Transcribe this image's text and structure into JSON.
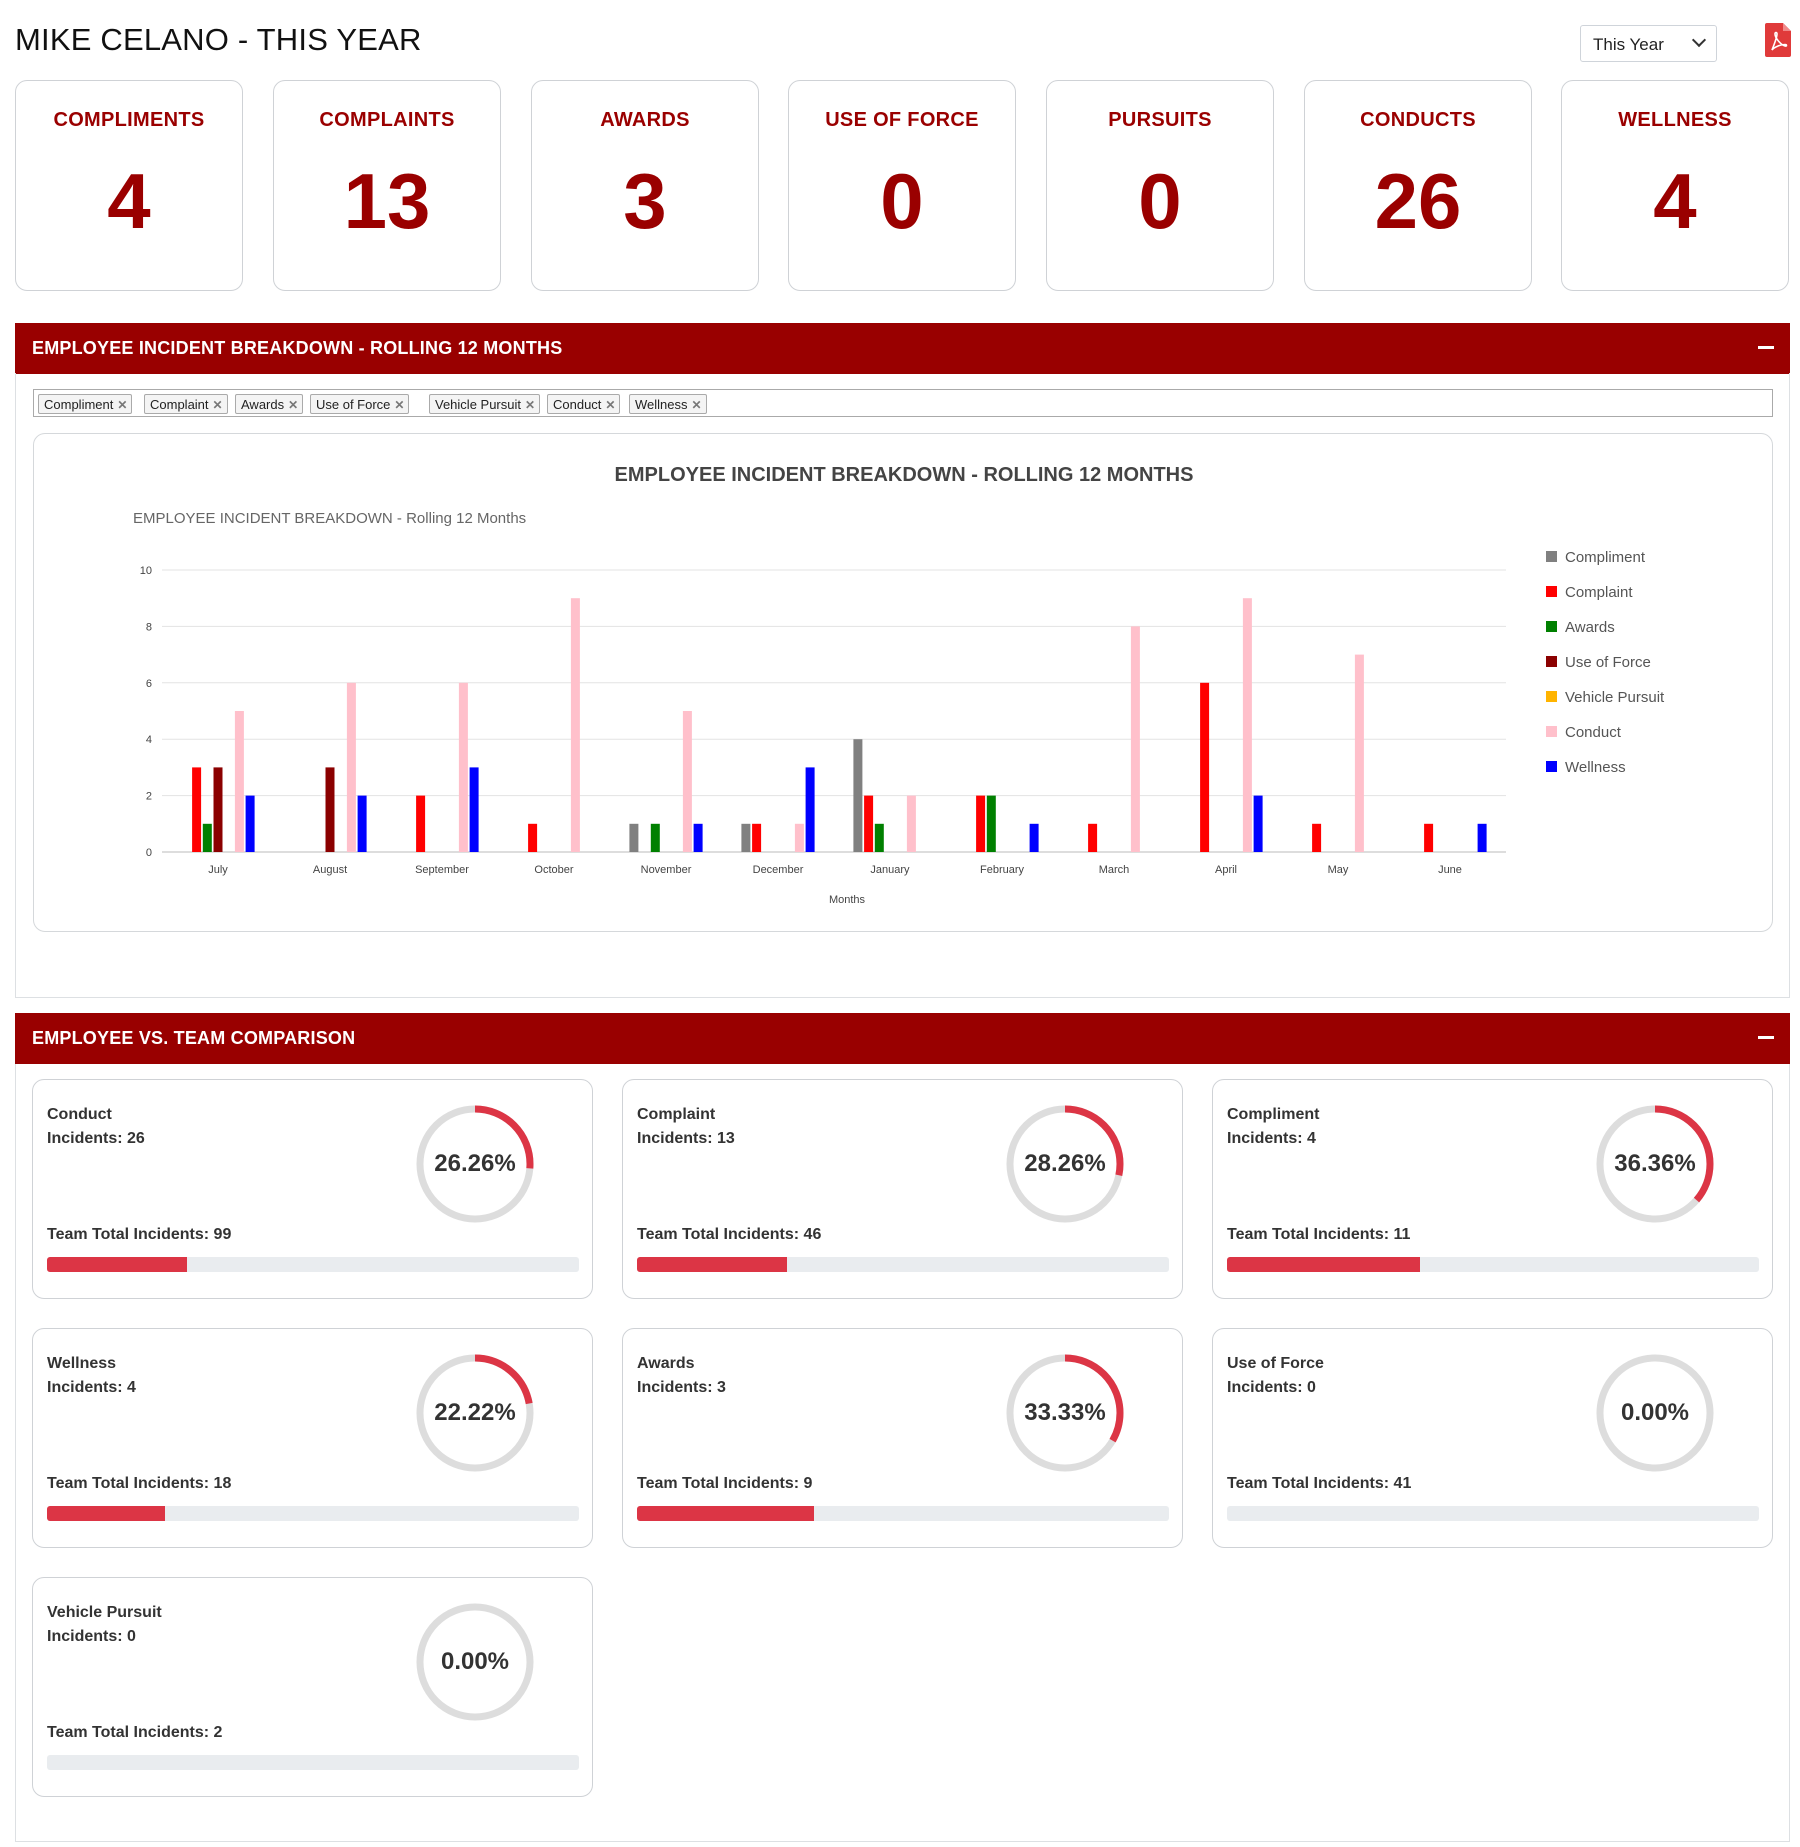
{
  "header": {
    "title": "MIKE CELANO - THIS YEAR",
    "period_selected": "This Year",
    "pdf_icon": "pdf-icon"
  },
  "stats": [
    {
      "label": "COMPLIMENTS",
      "value": "4"
    },
    {
      "label": "COMPLAINTS",
      "value": "13"
    },
    {
      "label": "AWARDS",
      "value": "3"
    },
    {
      "label": "USE OF FORCE",
      "value": "0"
    },
    {
      "label": "PURSUITS",
      "value": "0"
    },
    {
      "label": "CONDUCTS",
      "value": "26"
    },
    {
      "label": "WELLNESS",
      "value": "4"
    }
  ],
  "breakdown_panel": {
    "title": "EMPLOYEE INCIDENT BREAKDOWN - ROLLING 12 MONTHS",
    "filters": [
      "Compliment",
      "Complaint",
      "Awards",
      "Use of Force",
      "Vehicle Pursuit",
      "Conduct",
      "Wellness"
    ],
    "chart_card_title": "EMPLOYEE INCIDENT BREAKDOWN - ROLLING 12 MONTHS"
  },
  "chart_data": {
    "type": "bar",
    "title": "EMPLOYEE INCIDENT BREAKDOWN - Rolling 12 Months",
    "xlabel": "Months",
    "ylabel": "",
    "ylim": [
      0,
      10
    ],
    "yticks": [
      0,
      2,
      4,
      6,
      8,
      10
    ],
    "grid": true,
    "legend_position": "right",
    "categories": [
      "July",
      "August",
      "September",
      "October",
      "November",
      "December",
      "January",
      "February",
      "March",
      "April",
      "May",
      "June"
    ],
    "series": [
      {
        "name": "Compliment",
        "color": "#808080",
        "values": [
          0,
          0,
          0,
          0,
          1,
          1,
          4,
          0,
          0,
          0,
          0,
          0
        ]
      },
      {
        "name": "Complaint",
        "color": "#ff0000",
        "values": [
          3,
          0,
          2,
          1,
          0,
          1,
          2,
          2,
          1,
          6,
          1,
          1
        ]
      },
      {
        "name": "Awards",
        "color": "#008000",
        "values": [
          1,
          0,
          0,
          0,
          1,
          0,
          1,
          2,
          0,
          0,
          0,
          0
        ]
      },
      {
        "name": "Use of Force",
        "color": "#8b0000",
        "values": [
          3,
          3,
          0,
          0,
          0,
          0,
          0,
          0,
          0,
          0,
          0,
          0
        ]
      },
      {
        "name": "Vehicle Pursuit",
        "color": "#ffb400",
        "values": [
          0,
          0,
          0,
          0,
          0,
          0,
          0,
          0,
          0,
          0,
          0,
          0
        ]
      },
      {
        "name": "Conduct",
        "color": "#ffc0cb",
        "values": [
          5,
          6,
          6,
          9,
          5,
          1,
          2,
          0,
          8,
          9,
          7,
          0
        ]
      },
      {
        "name": "Wellness",
        "color": "#0000ff",
        "values": [
          2,
          2,
          3,
          0,
          1,
          3,
          0,
          1,
          0,
          2,
          0,
          1
        ]
      }
    ]
  },
  "comparison_panel": {
    "title": "EMPLOYEE VS. TEAM COMPARISON",
    "cards": [
      {
        "name": "Conduct",
        "incidents": "Incidents: 26",
        "percent_label": "26.26%",
        "percent": 26.26,
        "team_total": "Team Total Incidents: 99"
      },
      {
        "name": "Complaint",
        "incidents": "Incidents: 13",
        "percent_label": "28.26%",
        "percent": 28.26,
        "team_total": "Team Total Incidents: 46"
      },
      {
        "name": "Compliment",
        "incidents": "Incidents: 4",
        "percent_label": "36.36%",
        "percent": 36.36,
        "team_total": "Team Total Incidents: 11"
      },
      {
        "name": "Wellness",
        "incidents": "Incidents: 4",
        "percent_label": "22.22%",
        "percent": 22.22,
        "team_total": "Team Total Incidents: 18"
      },
      {
        "name": "Awards",
        "incidents": "Incidents: 3",
        "percent_label": "33.33%",
        "percent": 33.33,
        "team_total": "Team Total Incidents: 9"
      },
      {
        "name": "Use of Force",
        "incidents": "Incidents: 0",
        "percent_label": "0.00%",
        "percent": 0,
        "team_total": "Team Total Incidents: 41"
      },
      {
        "name": "Vehicle Pursuit",
        "incidents": "Incidents: 0",
        "percent_label": "0.00%",
        "percent": 0,
        "team_total": "Team Total Incidents: 2"
      }
    ]
  },
  "colors": {
    "brand": "#990000",
    "accent": "#dc3545",
    "track": "#dddddd"
  }
}
